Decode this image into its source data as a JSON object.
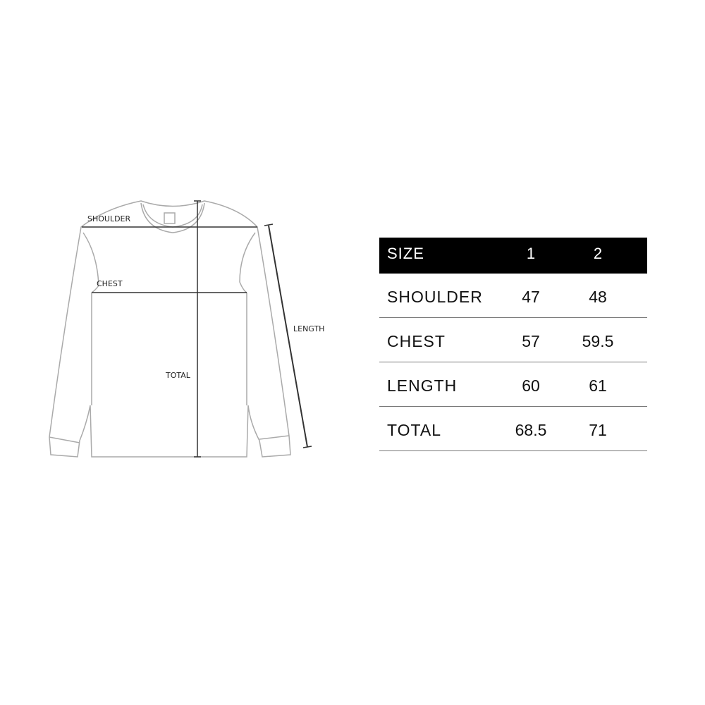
{
  "diagram": {
    "labels": {
      "shoulder": "SHOULDER",
      "chest": "CHEST",
      "length": "LENGTH",
      "total": "TOTAL"
    }
  },
  "size_table": {
    "header": [
      "SIZE",
      "1",
      "2"
    ],
    "rows": [
      [
        "SHOULDER",
        "47",
        "48"
      ],
      [
        "CHEST",
        "57",
        "59.5"
      ],
      [
        "LENGTH",
        "60",
        "61"
      ],
      [
        "TOTAL",
        "68.5",
        "71"
      ]
    ],
    "header_bg": "#000000"
  }
}
